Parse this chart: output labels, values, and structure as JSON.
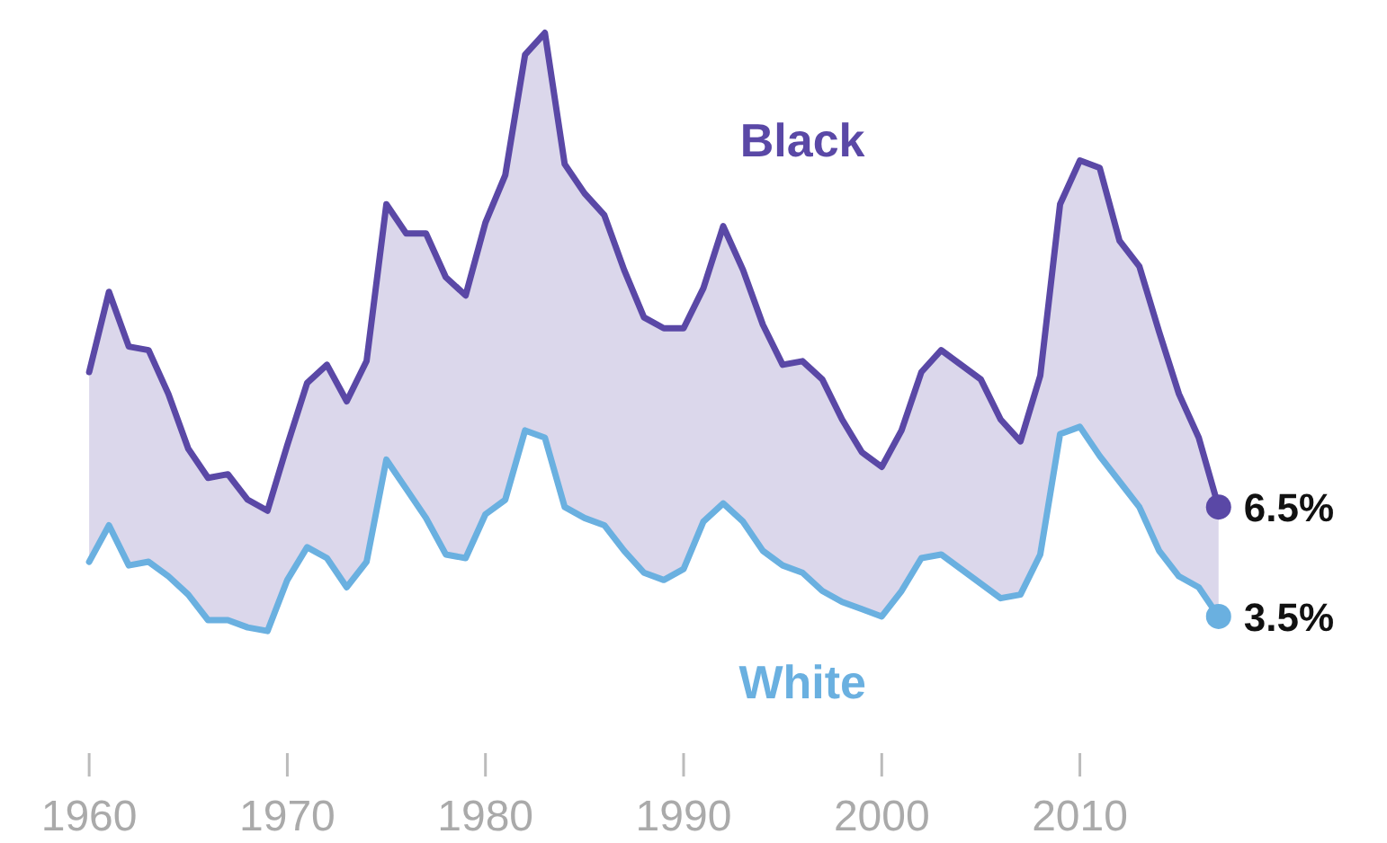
{
  "chart_data": {
    "type": "line",
    "x": [
      1960,
      1961,
      1962,
      1963,
      1964,
      1965,
      1966,
      1967,
      1968,
      1969,
      1970,
      1971,
      1972,
      1973,
      1974,
      1975,
      1976,
      1977,
      1978,
      1979,
      1980,
      1981,
      1982,
      1983,
      1984,
      1985,
      1986,
      1987,
      1988,
      1989,
      1990,
      1991,
      1992,
      1993,
      1994,
      1995,
      1996,
      1997,
      1998,
      1999,
      2000,
      2001,
      2002,
      2003,
      2004,
      2005,
      2006,
      2007,
      2008,
      2009,
      2010,
      2011,
      2012,
      2013,
      2014,
      2015,
      2016,
      2017
    ],
    "xlim": [
      1955.5,
      2025.5
    ],
    "xticks": [
      1960,
      1970,
      1980,
      1990,
      2000,
      2010
    ],
    "ylim": [
      0,
      20.4
    ],
    "tick_labels": "x",
    "grid": false,
    "legend": false,
    "series": [
      {
        "name": "Black",
        "type": "area",
        "color": "#5a48a6",
        "values": [
          10.2,
          12.4,
          10.9,
          10.8,
          9.6,
          8.1,
          7.3,
          7.4,
          6.7,
          6.4,
          8.2,
          9.9,
          10.4,
          9.4,
          10.5,
          14.8,
          14.0,
          14.0,
          12.8,
          12.3,
          14.3,
          15.6,
          18.9,
          19.5,
          15.9,
          15.1,
          14.5,
          13.0,
          11.7,
          11.4,
          11.4,
          12.5,
          14.2,
          13.0,
          11.5,
          10.4,
          10.5,
          10.0,
          8.9,
          8.0,
          7.6,
          8.6,
          10.2,
          10.8,
          10.4,
          10.0,
          8.9,
          8.3,
          10.1,
          14.8,
          16.0,
          15.8,
          13.8,
          13.1,
          11.3,
          9.6,
          8.4,
          6.5
        ],
        "value_labels": [
          null,
          null,
          null,
          null,
          null,
          null,
          null,
          null,
          null,
          null,
          null,
          null,
          null,
          null,
          null,
          null,
          null,
          null,
          null,
          null,
          null,
          null,
          null,
          null,
          null,
          null,
          null,
          null,
          null,
          null,
          null,
          null,
          null,
          null,
          null,
          null,
          null,
          null,
          null,
          null,
          null,
          null,
          null,
          null,
          null,
          null,
          null,
          null,
          null,
          null,
          null,
          null,
          null,
          null,
          null,
          null,
          null,
          "6.5%"
        ]
      },
      {
        "name": "White",
        "type": "line",
        "color": "#6ab0e0",
        "values": [
          5.0,
          6.0,
          4.9,
          5.0,
          4.6,
          4.1,
          3.4,
          3.4,
          3.2,
          3.1,
          4.5,
          5.4,
          5.1,
          4.3,
          5.0,
          7.8,
          7.0,
          6.2,
          5.2,
          5.1,
          6.3,
          6.7,
          8.6,
          8.4,
          6.5,
          6.2,
          6.0,
          5.3,
          4.7,
          4.5,
          4.8,
          6.1,
          6.6,
          6.1,
          5.3,
          4.9,
          4.7,
          4.2,
          3.9,
          3.7,
          3.5,
          4.2,
          5.1,
          5.2,
          4.8,
          4.4,
          4.0,
          4.1,
          5.2,
          8.5,
          8.7,
          7.9,
          7.2,
          6.5,
          5.3,
          4.6,
          4.3,
          3.5
        ],
        "value_labels": [
          null,
          null,
          null,
          null,
          null,
          null,
          null,
          null,
          null,
          null,
          null,
          null,
          null,
          null,
          null,
          null,
          null,
          null,
          null,
          null,
          null,
          null,
          null,
          null,
          null,
          null,
          null,
          null,
          null,
          null,
          null,
          null,
          null,
          null,
          null,
          null,
          null,
          null,
          null,
          null,
          null,
          null,
          null,
          null,
          null,
          null,
          null,
          null,
          null,
          null,
          null,
          null,
          null,
          null,
          null,
          null,
          null,
          "3.5%"
        ]
      }
    ]
  }
}
